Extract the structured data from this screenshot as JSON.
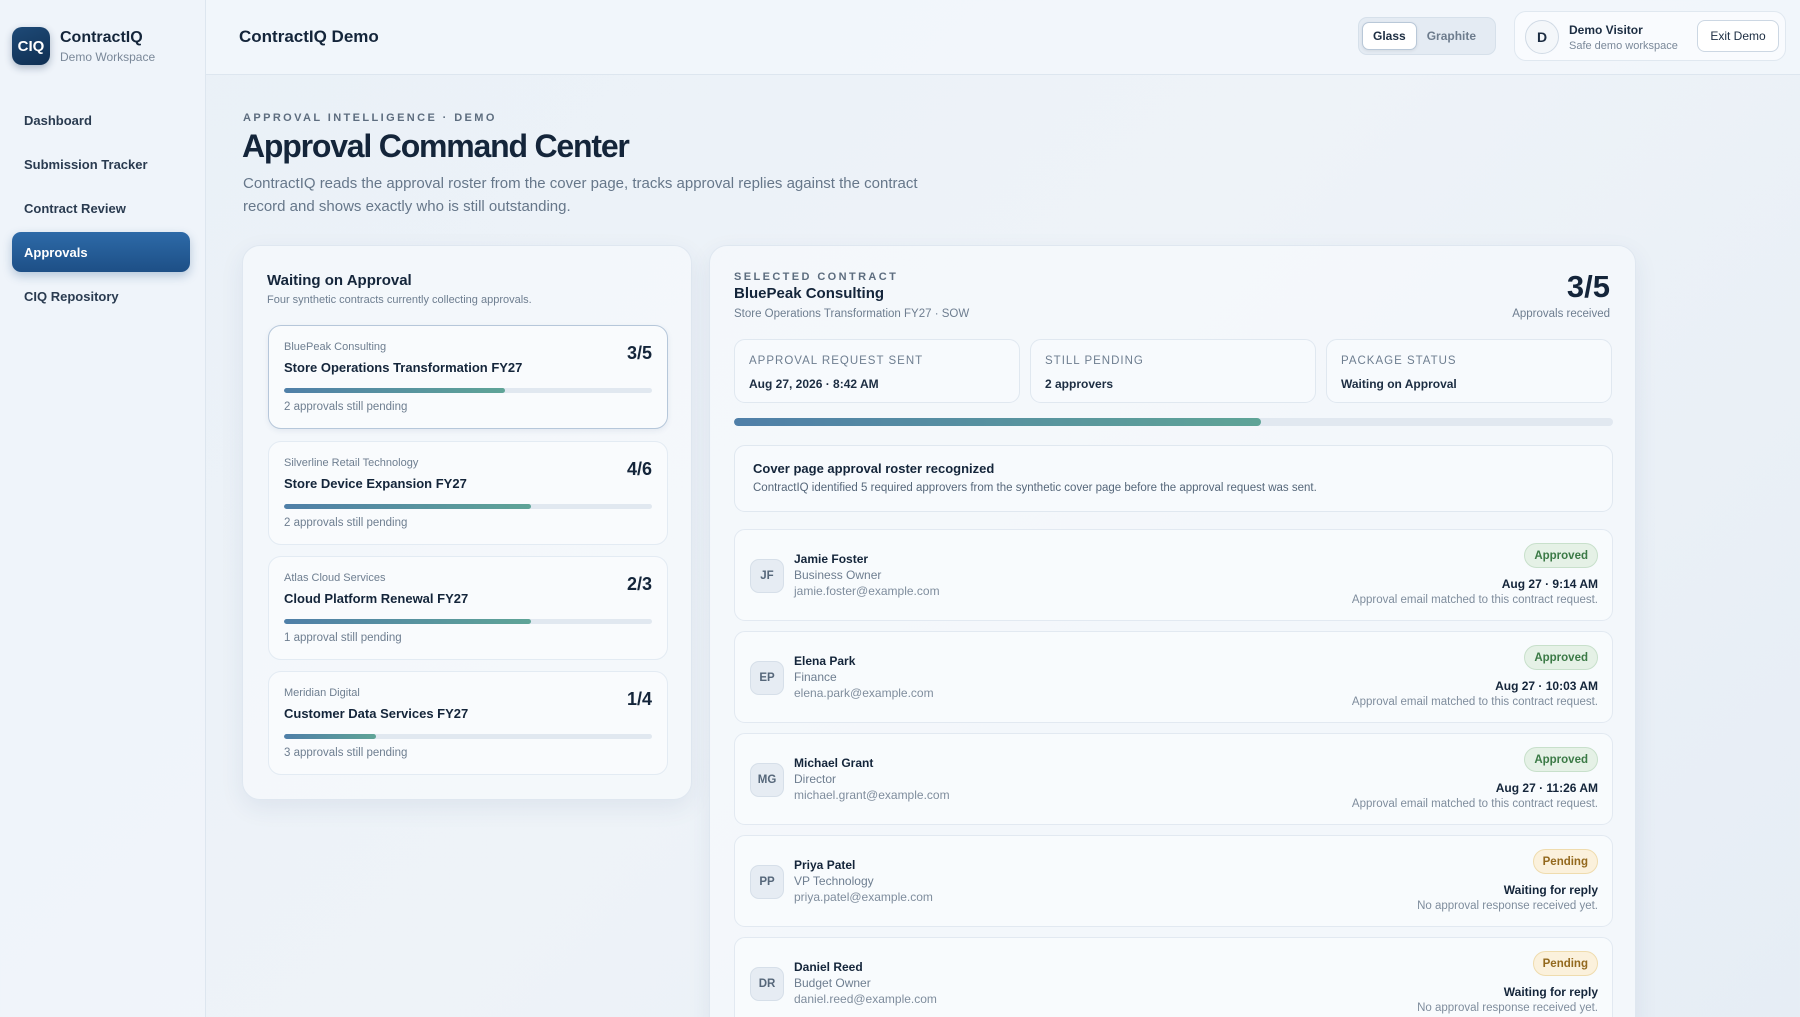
{
  "brand": {
    "logo_text": "CIQ",
    "name": "ContractIQ",
    "sub": "Demo Workspace"
  },
  "nav": {
    "items": [
      {
        "label": "Dashboard"
      },
      {
        "label": "Submission Tracker"
      },
      {
        "label": "Contract Review"
      },
      {
        "label": "Approvals"
      },
      {
        "label": "CIQ Repository"
      }
    ],
    "active": "Approvals"
  },
  "topbar": {
    "title": "ContractIQ Demo",
    "themes": [
      "Glass",
      "Graphite"
    ],
    "active_theme": "Glass",
    "user": {
      "initial": "D",
      "name": "Demo Visitor",
      "sub": "Safe demo workspace"
    },
    "exit_label": "Exit Demo"
  },
  "header": {
    "eyebrow": "APPROVAL INTELLIGENCE · DEMO",
    "title": "Approval Command Center",
    "description": "ContractIQ reads the approval roster from the cover page, tracks approval replies against the contract record and shows exactly who is still outstanding."
  },
  "waiting": {
    "title": "Waiting on Approval",
    "subtitle": "Four synthetic contracts currently collecting approvals.",
    "contracts": [
      {
        "vendor": "BluePeak Consulting",
        "name": "Store Operations Transformation FY27",
        "count": "3/5",
        "progress": 0.6,
        "note": "2 approvals still pending"
      },
      {
        "vendor": "Silverline Retail Technology",
        "name": "Store Device Expansion FY27",
        "count": "4/6",
        "progress": 0.67,
        "note": "2 approvals still pending"
      },
      {
        "vendor": "Atlas Cloud Services",
        "name": "Cloud Platform Renewal FY27",
        "count": "2/3",
        "progress": 0.67,
        "note": "1 approval still pending"
      },
      {
        "vendor": "Meridian Digital",
        "name": "Customer Data Services FY27",
        "count": "1/4",
        "progress": 0.25,
        "note": "3 approvals still pending"
      }
    ]
  },
  "selected": {
    "eyebrow": "SELECTED CONTRACT",
    "vendor": "BluePeak Consulting",
    "subtitle": "Store Operations Transformation FY27 · SOW",
    "count": "3/5",
    "count_label": "Approvals received",
    "progress": 0.6,
    "stats": [
      {
        "label": "APPROVAL REQUEST SENT",
        "value": "Aug 27, 2026 · 8:42 AM"
      },
      {
        "label": "STILL PENDING",
        "value": "2 approvers"
      },
      {
        "label": "PACKAGE STATUS",
        "value": "Waiting on Approval"
      }
    ],
    "notice": {
      "title": "Cover page approval roster recognized",
      "body": "ContractIQ identified 5 required approvers from the synthetic cover page before the approval request was sent."
    },
    "approvers": [
      {
        "initials": "JF",
        "name": "Jamie Foster",
        "role": "Business Owner",
        "email": "jamie.foster@example.com",
        "status": "Approved",
        "time": "Aug 27 · 9:14 AM",
        "note": "Approval email matched to this contract request."
      },
      {
        "initials": "EP",
        "name": "Elena Park",
        "role": "Finance",
        "email": "elena.park@example.com",
        "status": "Approved",
        "time": "Aug 27 · 10:03 AM",
        "note": "Approval email matched to this contract request."
      },
      {
        "initials": "MG",
        "name": "Michael Grant",
        "role": "Director",
        "email": "michael.grant@example.com",
        "status": "Approved",
        "time": "Aug 27 · 11:26 AM",
        "note": "Approval email matched to this contract request."
      },
      {
        "initials": "PP",
        "name": "Priya Patel",
        "role": "VP Technology",
        "email": "priya.patel@example.com",
        "status": "Pending",
        "time": "Waiting for reply",
        "note": "No approval response received yet."
      },
      {
        "initials": "DR",
        "name": "Daniel Reed",
        "role": "Budget Owner",
        "email": "daniel.reed@example.com",
        "status": "Pending",
        "time": "Waiting for reply",
        "note": "No approval response received yet."
      }
    ]
  },
  "colors": {
    "accent": "#1d4f86",
    "progress_start": "#4f7fa8",
    "progress_end": "#5fa497",
    "approved": "#3b7a46",
    "pending": "#93691e"
  }
}
